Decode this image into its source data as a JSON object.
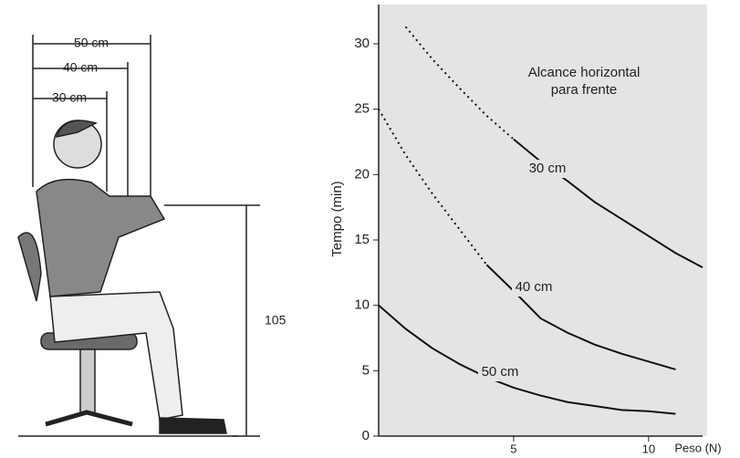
{
  "figure": {
    "reach_labels": [
      "50 cm",
      "40 cm",
      "30 cm"
    ],
    "height_label": "105"
  },
  "chart_data": {
    "type": "line",
    "ylabel": "Tempo (min)",
    "xlabel": "Peso (N)",
    "annotation": [
      "Alcance horizontal",
      "para frente"
    ],
    "x": [
      0,
      1,
      2,
      3,
      4,
      5,
      6,
      7,
      8,
      9,
      10,
      11,
      12
    ],
    "xlim": [
      0,
      12
    ],
    "xticks": [
      5,
      10
    ],
    "ylim": [
      0,
      33
    ],
    "yticks": [
      0,
      5,
      10,
      15,
      20,
      25,
      30
    ],
    "color": "#111111",
    "series": [
      {
        "name": "30 cm",
        "segments": [
          {
            "style": "dotted",
            "values": [
              null,
              31.3,
              28.8,
              26.6,
              24.5,
              22.7,
              null,
              null,
              null,
              null,
              null,
              null,
              null
            ]
          },
          {
            "style": "solid",
            "values": [
              null,
              null,
              null,
              null,
              null,
              22.7,
              21.0,
              19.5,
              17.9,
              16.6,
              15.3,
              14.0,
              12.9
            ]
          }
        ]
      },
      {
        "name": "40 cm",
        "segments": [
          {
            "style": "dotted",
            "values": [
              25,
              21.5,
              18.5,
              15.8,
              13.1,
              null,
              null,
              null,
              null,
              null,
              null,
              null,
              null
            ]
          },
          {
            "style": "solid",
            "values": [
              null,
              null,
              null,
              null,
              13.1,
              11.1,
              9.0,
              7.9,
              7.0,
              6.3,
              5.7,
              5.1,
              null
            ]
          }
        ]
      },
      {
        "name": "50 cm",
        "segments": [
          {
            "style": "solid",
            "values": [
              10,
              8.2,
              6.7,
              5.5,
              4.5,
              3.7,
              3.1,
              2.6,
              2.3,
              2.0,
              1.9,
              1.7,
              null
            ]
          }
        ]
      }
    ]
  }
}
